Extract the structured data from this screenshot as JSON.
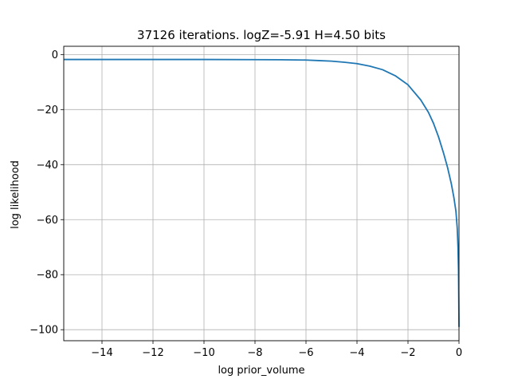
{
  "chart_data": {
    "type": "line",
    "title": "37126 iterations. logZ=-5.91 H=4.50 bits",
    "xlabel": "log prior_volume",
    "ylabel": "log likelihood",
    "xlim": [
      -15.5,
      0
    ],
    "ylim": [
      -104,
      3
    ],
    "xticks": [
      -14,
      -12,
      -10,
      -8,
      -6,
      -4,
      -2,
      0
    ],
    "xtick_labels": [
      "−14",
      "−12",
      "−10",
      "−8",
      "−6",
      "−4",
      "−2",
      "0"
    ],
    "yticks": [
      0,
      -20,
      -40,
      -60,
      -80,
      -100
    ],
    "ytick_labels": [
      "0",
      "−20",
      "−40",
      "−60",
      "−80",
      "−100"
    ],
    "grid": true,
    "line_color": "#1f77b4",
    "series": [
      {
        "x": [
          -15.5,
          -14,
          -12,
          -10,
          -8,
          -7,
          -6,
          -5.5,
          -5,
          -4.5,
          -4,
          -3.5,
          -3,
          -2.5,
          -2,
          -1.5,
          -1.2,
          -1,
          -0.8,
          -0.6,
          -0.45,
          -0.3,
          -0.2,
          -0.12,
          -0.07,
          -0.04,
          -0.02,
          -0.01,
          0
        ],
        "y": [
          -1.8,
          -1.8,
          -1.8,
          -1.8,
          -1.85,
          -1.9,
          -2.0,
          -2.2,
          -2.4,
          -2.8,
          -3.3,
          -4.2,
          -5.5,
          -7.7,
          -11.0,
          -16.5,
          -21.0,
          -25.0,
          -30.0,
          -36.0,
          -41.0,
          -47.0,
          -52.0,
          -57.0,
          -63.0,
          -70.0,
          -78.0,
          -88.0,
          -99.0
        ]
      }
    ]
  }
}
